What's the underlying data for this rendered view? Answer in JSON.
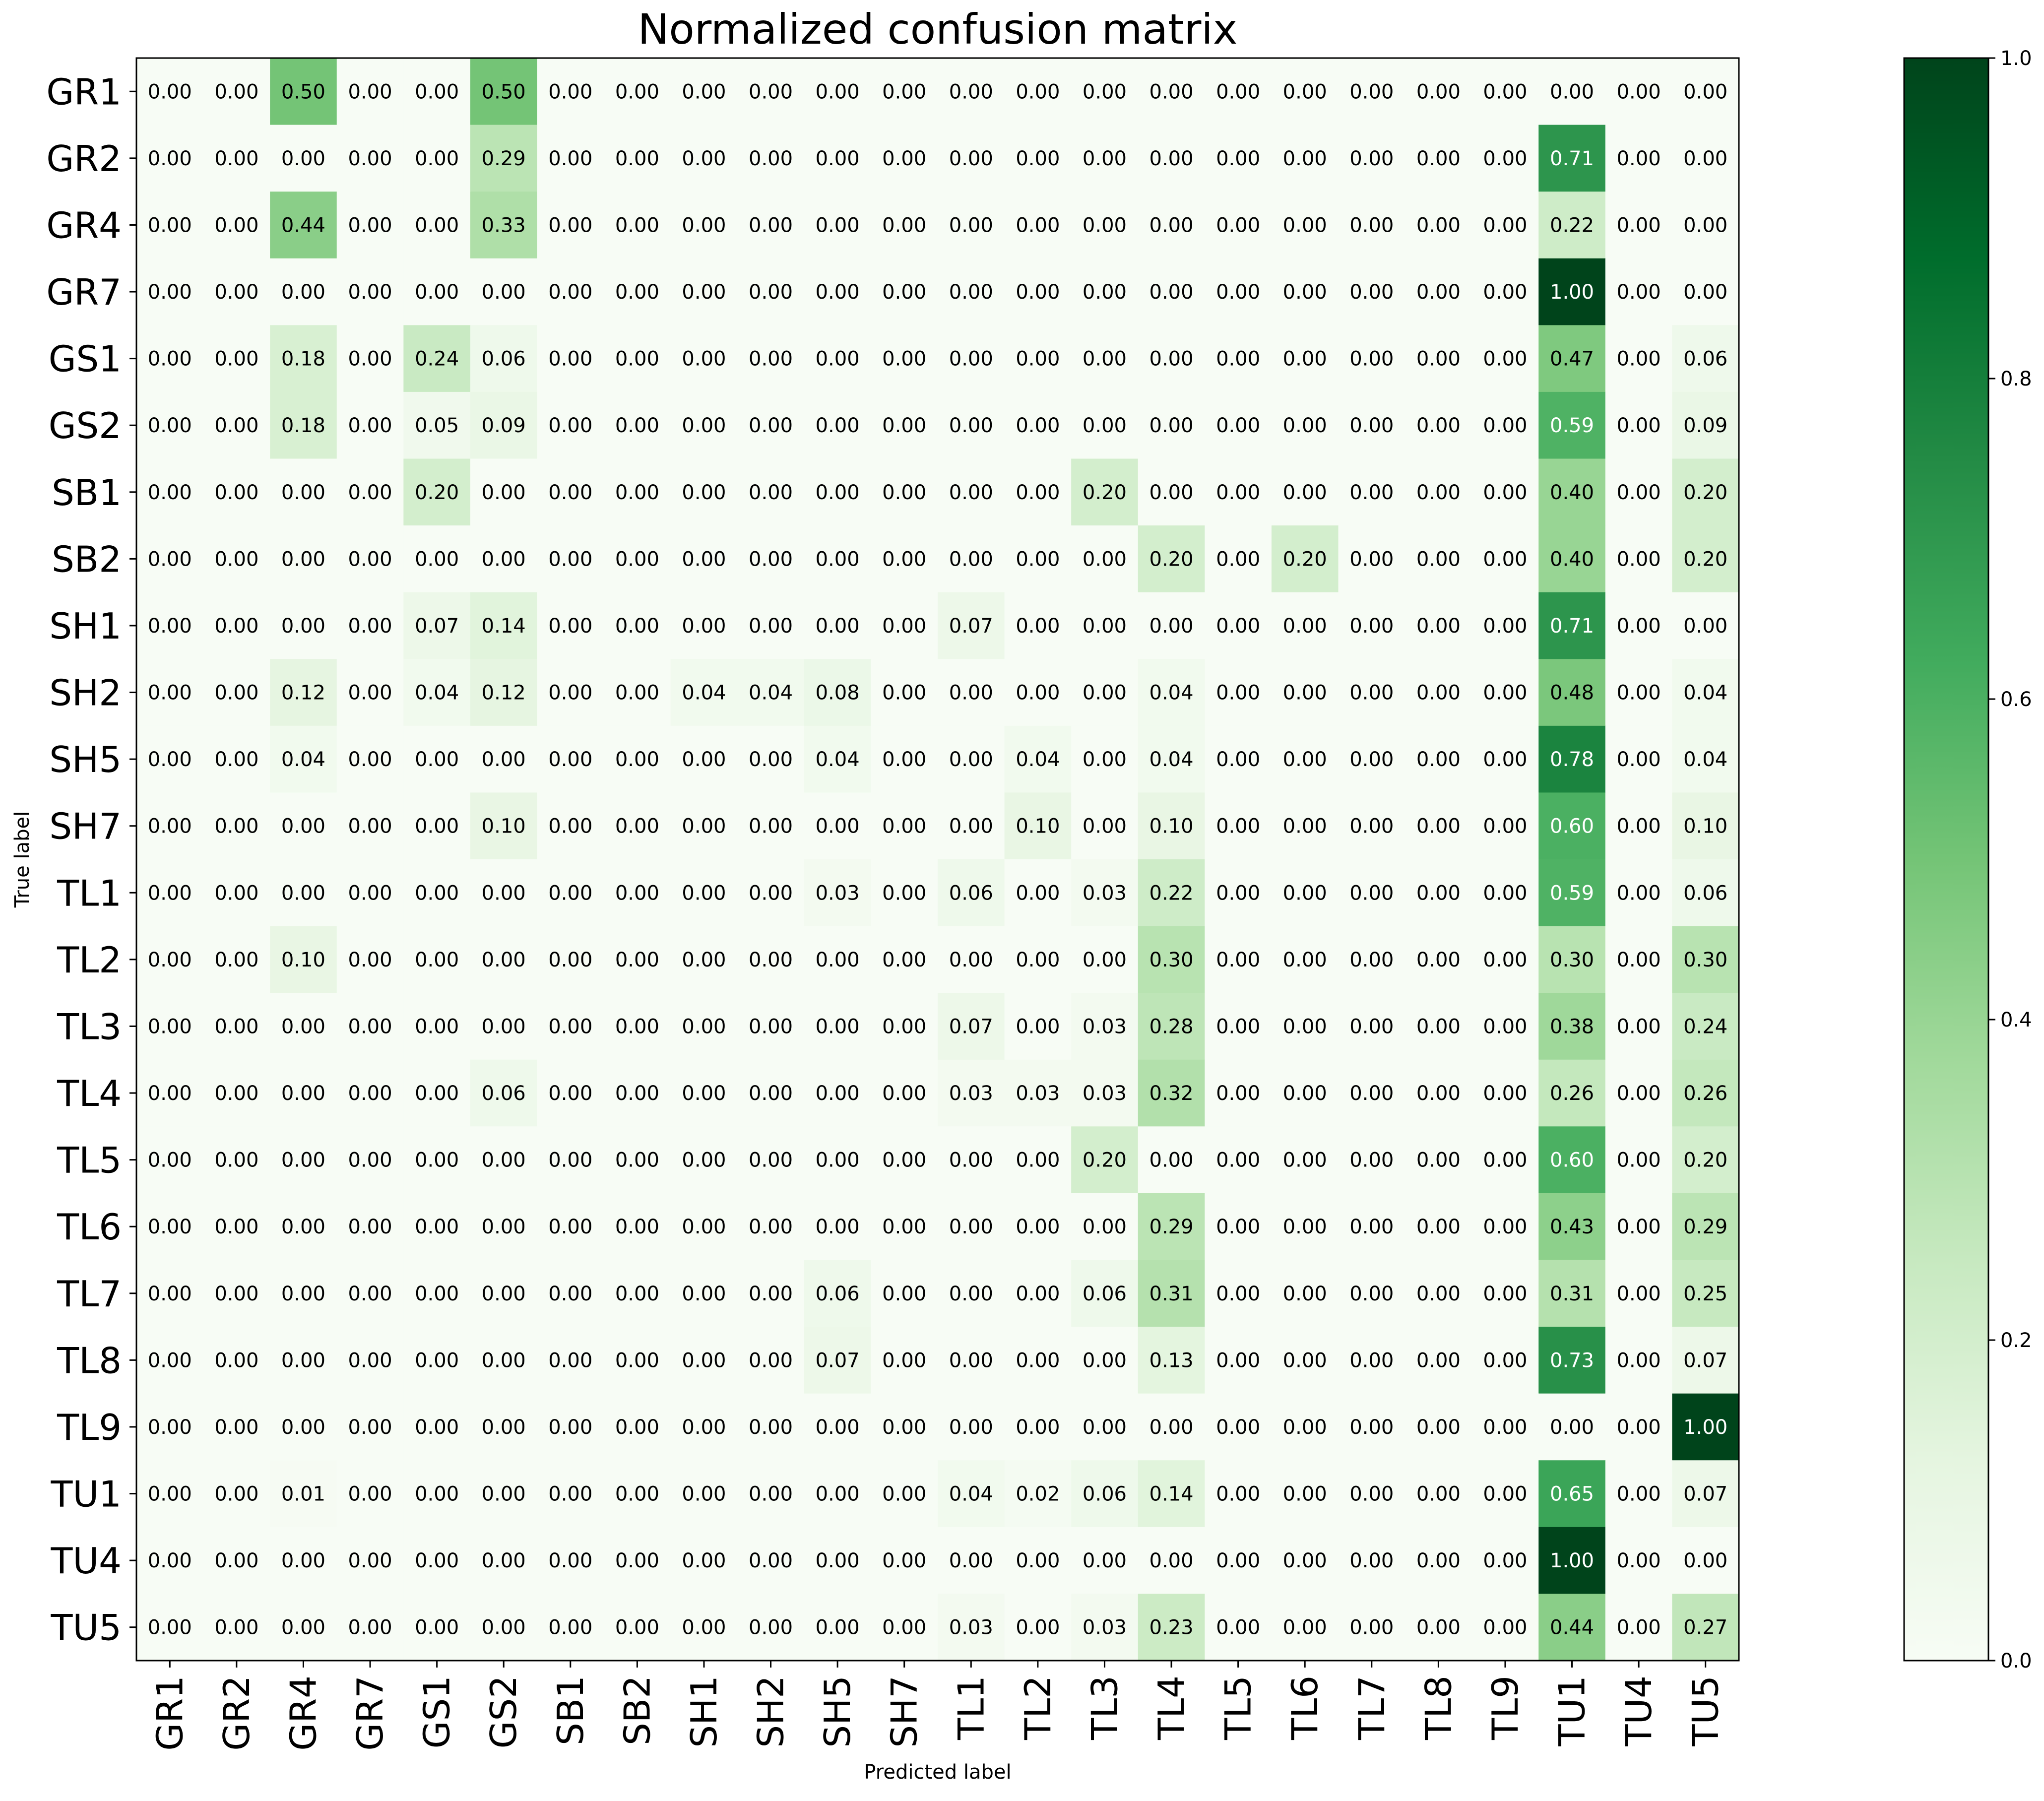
{
  "chart_data": {
    "type": "heatmap",
    "title": "Normalized confusion matrix",
    "xlabel": "Predicted label",
    "ylabel": "True label",
    "x_labels": [
      "GR1",
      "GR2",
      "GR4",
      "GR7",
      "GS1",
      "GS2",
      "SB1",
      "SB2",
      "SH1",
      "SH2",
      "SH5",
      "SH7",
      "TL1",
      "TL2",
      "TL3",
      "TL4",
      "TL5",
      "TL6",
      "TL7",
      "TL8",
      "TL9",
      "TU1",
      "TU4",
      "TU5"
    ],
    "y_labels": [
      "GR1",
      "GR2",
      "GR4",
      "GR7",
      "GS1",
      "GS2",
      "SB1",
      "SB2",
      "SH1",
      "SH2",
      "SH5",
      "SH7",
      "TL1",
      "TL2",
      "TL3",
      "TL4",
      "TL5",
      "TL6",
      "TL7",
      "TL8",
      "TL9",
      "TU1",
      "TU4",
      "TU5"
    ],
    "values": [
      [
        0.0,
        0.0,
        0.5,
        0.0,
        0.0,
        0.5,
        0.0,
        0.0,
        0.0,
        0.0,
        0.0,
        0.0,
        0.0,
        0.0,
        0.0,
        0.0,
        0.0,
        0.0,
        0.0,
        0.0,
        0.0,
        0.0,
        0.0,
        0.0
      ],
      [
        0.0,
        0.0,
        0.0,
        0.0,
        0.0,
        0.29,
        0.0,
        0.0,
        0.0,
        0.0,
        0.0,
        0.0,
        0.0,
        0.0,
        0.0,
        0.0,
        0.0,
        0.0,
        0.0,
        0.0,
        0.0,
        0.71,
        0.0,
        0.0
      ],
      [
        0.0,
        0.0,
        0.44,
        0.0,
        0.0,
        0.33,
        0.0,
        0.0,
        0.0,
        0.0,
        0.0,
        0.0,
        0.0,
        0.0,
        0.0,
        0.0,
        0.0,
        0.0,
        0.0,
        0.0,
        0.0,
        0.22,
        0.0,
        0.0
      ],
      [
        0.0,
        0.0,
        0.0,
        0.0,
        0.0,
        0.0,
        0.0,
        0.0,
        0.0,
        0.0,
        0.0,
        0.0,
        0.0,
        0.0,
        0.0,
        0.0,
        0.0,
        0.0,
        0.0,
        0.0,
        0.0,
        1.0,
        0.0,
        0.0
      ],
      [
        0.0,
        0.0,
        0.18,
        0.0,
        0.24,
        0.06,
        0.0,
        0.0,
        0.0,
        0.0,
        0.0,
        0.0,
        0.0,
        0.0,
        0.0,
        0.0,
        0.0,
        0.0,
        0.0,
        0.0,
        0.0,
        0.47,
        0.0,
        0.06
      ],
      [
        0.0,
        0.0,
        0.18,
        0.0,
        0.05,
        0.09,
        0.0,
        0.0,
        0.0,
        0.0,
        0.0,
        0.0,
        0.0,
        0.0,
        0.0,
        0.0,
        0.0,
        0.0,
        0.0,
        0.0,
        0.0,
        0.59,
        0.0,
        0.09
      ],
      [
        0.0,
        0.0,
        0.0,
        0.0,
        0.2,
        0.0,
        0.0,
        0.0,
        0.0,
        0.0,
        0.0,
        0.0,
        0.0,
        0.0,
        0.2,
        0.0,
        0.0,
        0.0,
        0.0,
        0.0,
        0.0,
        0.4,
        0.0,
        0.2
      ],
      [
        0.0,
        0.0,
        0.0,
        0.0,
        0.0,
        0.0,
        0.0,
        0.0,
        0.0,
        0.0,
        0.0,
        0.0,
        0.0,
        0.0,
        0.0,
        0.2,
        0.0,
        0.2,
        0.0,
        0.0,
        0.0,
        0.4,
        0.0,
        0.2
      ],
      [
        0.0,
        0.0,
        0.0,
        0.0,
        0.07,
        0.14,
        0.0,
        0.0,
        0.0,
        0.0,
        0.0,
        0.0,
        0.07,
        0.0,
        0.0,
        0.0,
        0.0,
        0.0,
        0.0,
        0.0,
        0.0,
        0.71,
        0.0,
        0.0
      ],
      [
        0.0,
        0.0,
        0.12,
        0.0,
        0.04,
        0.12,
        0.0,
        0.0,
        0.04,
        0.04,
        0.08,
        0.0,
        0.0,
        0.0,
        0.0,
        0.04,
        0.0,
        0.0,
        0.0,
        0.0,
        0.0,
        0.48,
        0.0,
        0.04
      ],
      [
        0.0,
        0.0,
        0.04,
        0.0,
        0.0,
        0.0,
        0.0,
        0.0,
        0.0,
        0.0,
        0.04,
        0.0,
        0.0,
        0.04,
        0.0,
        0.04,
        0.0,
        0.0,
        0.0,
        0.0,
        0.0,
        0.78,
        0.0,
        0.04
      ],
      [
        0.0,
        0.0,
        0.0,
        0.0,
        0.0,
        0.1,
        0.0,
        0.0,
        0.0,
        0.0,
        0.0,
        0.0,
        0.0,
        0.1,
        0.0,
        0.1,
        0.0,
        0.0,
        0.0,
        0.0,
        0.0,
        0.6,
        0.0,
        0.1
      ],
      [
        0.0,
        0.0,
        0.0,
        0.0,
        0.0,
        0.0,
        0.0,
        0.0,
        0.0,
        0.0,
        0.03,
        0.0,
        0.06,
        0.0,
        0.03,
        0.22,
        0.0,
        0.0,
        0.0,
        0.0,
        0.0,
        0.59,
        0.0,
        0.06
      ],
      [
        0.0,
        0.0,
        0.1,
        0.0,
        0.0,
        0.0,
        0.0,
        0.0,
        0.0,
        0.0,
        0.0,
        0.0,
        0.0,
        0.0,
        0.0,
        0.3,
        0.0,
        0.0,
        0.0,
        0.0,
        0.0,
        0.3,
        0.0,
        0.3
      ],
      [
        0.0,
        0.0,
        0.0,
        0.0,
        0.0,
        0.0,
        0.0,
        0.0,
        0.0,
        0.0,
        0.0,
        0.0,
        0.07,
        0.0,
        0.03,
        0.28,
        0.0,
        0.0,
        0.0,
        0.0,
        0.0,
        0.38,
        0.0,
        0.24
      ],
      [
        0.0,
        0.0,
        0.0,
        0.0,
        0.0,
        0.06,
        0.0,
        0.0,
        0.0,
        0.0,
        0.0,
        0.0,
        0.03,
        0.03,
        0.03,
        0.32,
        0.0,
        0.0,
        0.0,
        0.0,
        0.0,
        0.26,
        0.0,
        0.26
      ],
      [
        0.0,
        0.0,
        0.0,
        0.0,
        0.0,
        0.0,
        0.0,
        0.0,
        0.0,
        0.0,
        0.0,
        0.0,
        0.0,
        0.0,
        0.2,
        0.0,
        0.0,
        0.0,
        0.0,
        0.0,
        0.0,
        0.6,
        0.0,
        0.2
      ],
      [
        0.0,
        0.0,
        0.0,
        0.0,
        0.0,
        0.0,
        0.0,
        0.0,
        0.0,
        0.0,
        0.0,
        0.0,
        0.0,
        0.0,
        0.0,
        0.29,
        0.0,
        0.0,
        0.0,
        0.0,
        0.0,
        0.43,
        0.0,
        0.29
      ],
      [
        0.0,
        0.0,
        0.0,
        0.0,
        0.0,
        0.0,
        0.0,
        0.0,
        0.0,
        0.0,
        0.06,
        0.0,
        0.0,
        0.0,
        0.06,
        0.31,
        0.0,
        0.0,
        0.0,
        0.0,
        0.0,
        0.31,
        0.0,
        0.25
      ],
      [
        0.0,
        0.0,
        0.0,
        0.0,
        0.0,
        0.0,
        0.0,
        0.0,
        0.0,
        0.0,
        0.07,
        0.0,
        0.0,
        0.0,
        0.0,
        0.13,
        0.0,
        0.0,
        0.0,
        0.0,
        0.0,
        0.73,
        0.0,
        0.07
      ],
      [
        0.0,
        0.0,
        0.0,
        0.0,
        0.0,
        0.0,
        0.0,
        0.0,
        0.0,
        0.0,
        0.0,
        0.0,
        0.0,
        0.0,
        0.0,
        0.0,
        0.0,
        0.0,
        0.0,
        0.0,
        0.0,
        0.0,
        0.0,
        1.0
      ],
      [
        0.0,
        0.0,
        0.01,
        0.0,
        0.0,
        0.0,
        0.0,
        0.0,
        0.0,
        0.0,
        0.0,
        0.0,
        0.04,
        0.02,
        0.06,
        0.14,
        0.0,
        0.0,
        0.0,
        0.0,
        0.0,
        0.65,
        0.0,
        0.07
      ],
      [
        0.0,
        0.0,
        0.0,
        0.0,
        0.0,
        0.0,
        0.0,
        0.0,
        0.0,
        0.0,
        0.0,
        0.0,
        0.0,
        0.0,
        0.0,
        0.0,
        0.0,
        0.0,
        0.0,
        0.0,
        0.0,
        1.0,
        0.0,
        0.0
      ],
      [
        0.0,
        0.0,
        0.0,
        0.0,
        0.0,
        0.0,
        0.0,
        0.0,
        0.0,
        0.0,
        0.0,
        0.0,
        0.03,
        0.0,
        0.03,
        0.23,
        0.0,
        0.0,
        0.0,
        0.0,
        0.0,
        0.44,
        0.0,
        0.27
      ]
    ],
    "colorbar": {
      "colormap": "Greens",
      "range": [
        0.0,
        1.0
      ],
      "ticks": [
        "0.0",
        "0.2",
        "0.4",
        "0.6",
        "0.8",
        "1.0"
      ]
    }
  }
}
